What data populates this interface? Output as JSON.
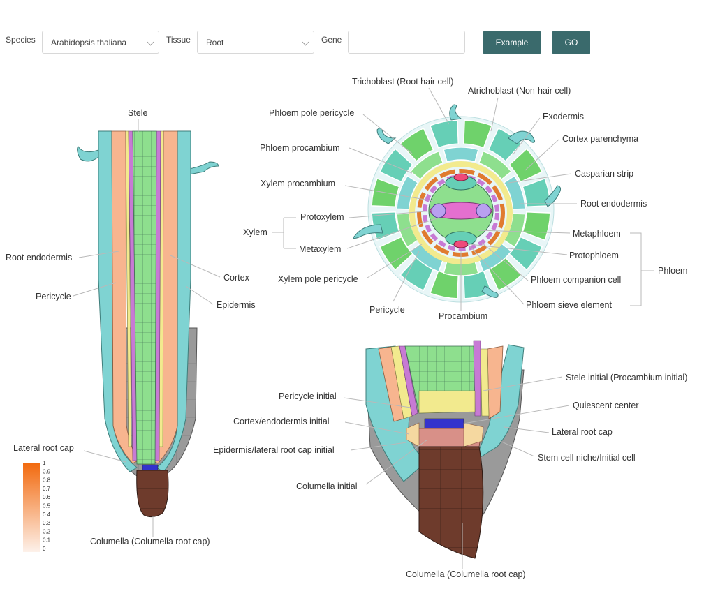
{
  "form": {
    "species_label": "Species",
    "species_value": "Arabidopsis thaliana",
    "tissue_label": "Tissue",
    "tissue_value": "Root",
    "gene_label": "Gene",
    "gene_value": "",
    "example_button": "Example",
    "go_button": "GO"
  },
  "colors": {
    "epidermis": "#7fd3d2",
    "cortex": "#f7b58f",
    "endodermis": "#f2ea8e",
    "pericycle": "#c77ad4",
    "stele": "#8edf8e",
    "lateral_root_cap": "#9a9a9a",
    "columella": "#6e3b2c",
    "qc": "#3333cc",
    "col_initial": "#d89088",
    "procambium": "#e07b2f",
    "phloem": "#66cfb6",
    "exodermis": "#6fd26b"
  },
  "diagram": {
    "longitudinal": {
      "stele": "Stele",
      "root_endodermis": "Root endodermis",
      "pericycle": "Pericycle",
      "cortex": "Cortex",
      "epidermis": "Epidermis",
      "lateral_root_cap": "Lateral root cap",
      "columella": "Columella (Columella root cap)"
    },
    "cross_section": {
      "trichoblast": "Trichoblast (Root hair cell)",
      "atrichoblast": "Atrichoblast (Non-hair cell)",
      "phloem_pole_pericycle": "Phloem pole pericycle",
      "exodermis": "Exodermis",
      "phloem_procambium": "Phloem procambium",
      "cortex_parenchyma": "Cortex parenchyma",
      "xylem_procambium": "Xylem procambium",
      "casparian_strip": "Casparian strip",
      "root_endodermis": "Root endodermis",
      "xylem": "Xylem",
      "protoxylem": "Protoxylem",
      "metaxylem": "Metaxylem",
      "metaphloem": "Metaphloem",
      "protophloem": "Protophloem",
      "phloem": "Phloem",
      "xylem_pole_pericycle": "Xylem pole pericycle",
      "phloem_companion_cell": "Phloem companion cell",
      "pericycle": "Pericycle",
      "phloem_sieve_element": "Phloem sieve element",
      "procambium": "Procambium"
    },
    "tip": {
      "stele_initial": "Stele initial (Procambium initial)",
      "pericycle_initial": "Pericycle initial",
      "quiescent_center": "Quiescent center",
      "cortex_endodermis_initial": "Cortex/endodermis initial",
      "lateral_root_cap": "Lateral root cap",
      "epidermis_lrc_initial": "Epidermis/lateral root cap initial",
      "stem_cell_niche": "Stem cell niche/Initial cell",
      "columella_initial": "Columella initial",
      "columella": "Columella (Columella root cap)"
    }
  },
  "scale": {
    "labels": [
      "1",
      "0.9",
      "0.8",
      "0.7",
      "0.6",
      "0.5",
      "0.4",
      "0.3",
      "0.2",
      "0.1",
      "0"
    ],
    "color_high": "#f26a0f",
    "color_low": "#fdf1ea"
  }
}
